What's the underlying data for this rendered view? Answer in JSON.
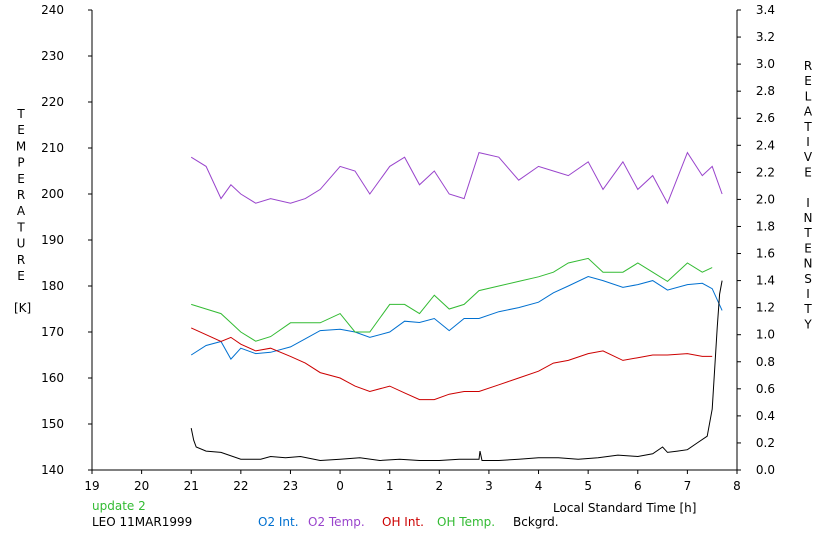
{
  "chart_data": {
    "type": "line",
    "xlabel": "Local Standard Time [h]",
    "ylabel_left": "TEMPERATURE [K]",
    "ylabel_left_letters": [
      "T",
      "E",
      "M",
      "P",
      "E",
      "R",
      "A",
      "T",
      "U",
      "R",
      "E"
    ],
    "ylabel_left_unit": "[K]",
    "ylabel_right": "RELATIVE INTENSITY",
    "ylabel_right_letters": [
      "R",
      "E",
      "L",
      "A",
      "T",
      "I",
      "V",
      "E",
      "",
      "I",
      "N",
      "T",
      "E",
      "N",
      "S",
      "I",
      "T",
      "Y"
    ],
    "x_ticks": [
      "19",
      "20",
      "21",
      "22",
      "23",
      "0",
      "1",
      "2",
      "3",
      "4",
      "5",
      "6",
      "7",
      "8"
    ],
    "y_left_ticks": [
      "240",
      "230",
      "220",
      "210",
      "200",
      "190",
      "180",
      "170",
      "160",
      "150",
      "140"
    ],
    "y_right_ticks": [
      "3.4",
      "3.2",
      "3.0",
      "2.8",
      "2.6",
      "2.4",
      "2.2",
      "2.0",
      "1.8",
      "1.6",
      "1.4",
      "1.2",
      "1.0",
      "0.8",
      "0.6",
      "0.4",
      "0.2",
      "0.0"
    ],
    "xlim": [
      19,
      32
    ],
    "ylim_left": [
      140,
      240
    ],
    "ylim_right": [
      0.0,
      3.4
    ],
    "grid": false,
    "legend_placement": "bottom",
    "series": [
      {
        "name": "O2 Int.",
        "color": "#0070d0",
        "axis": "right",
        "x": [
          21.0,
          21.3,
          21.6,
          21.8,
          22.0,
          22.3,
          22.6,
          23.0,
          23.3,
          23.6,
          24.0,
          24.3,
          24.6,
          25.0,
          25.3,
          25.6,
          25.9,
          26.2,
          26.5,
          26.8,
          27.2,
          27.6,
          28.0,
          28.3,
          28.6,
          29.0,
          29.3,
          29.7,
          30.0,
          30.3,
          30.6,
          31.0,
          31.3,
          31.5,
          31.7
        ],
        "y": [
          0.85,
          0.92,
          0.95,
          0.82,
          0.9,
          0.86,
          0.87,
          0.91,
          0.97,
          1.03,
          1.04,
          1.02,
          0.98,
          1.02,
          1.1,
          1.09,
          1.12,
          1.03,
          1.12,
          1.12,
          1.17,
          1.2,
          1.24,
          1.31,
          1.36,
          1.43,
          1.4,
          1.35,
          1.37,
          1.4,
          1.33,
          1.37,
          1.38,
          1.34,
          1.18
        ]
      },
      {
        "name": "O2 Temp.",
        "color": "#9944cc",
        "axis": "left",
        "x": [
          21.0,
          21.3,
          21.6,
          21.8,
          22.0,
          22.3,
          22.6,
          23.0,
          23.3,
          23.6,
          24.0,
          24.3,
          24.6,
          25.0,
          25.3,
          25.6,
          25.9,
          26.2,
          26.5,
          26.8,
          27.2,
          27.6,
          28.0,
          28.3,
          28.6,
          29.0,
          29.3,
          29.7,
          30.0,
          30.3,
          30.6,
          31.0,
          31.3,
          31.5,
          31.7
        ],
        "y": [
          208,
          206,
          199,
          202,
          200,
          198,
          199,
          198,
          199,
          201,
          206,
          205,
          200,
          206,
          208,
          202,
          205,
          200,
          199,
          209,
          208,
          203,
          206,
          205,
          204,
          207,
          201,
          207,
          201,
          204,
          198,
          209,
          204,
          206,
          200
        ]
      },
      {
        "name": "OH Int.",
        "color": "#cc0000",
        "axis": "right",
        "x": [
          21.0,
          21.3,
          21.6,
          21.8,
          22.0,
          22.3,
          22.6,
          23.0,
          23.3,
          23.6,
          24.0,
          24.3,
          24.6,
          25.0,
          25.3,
          25.6,
          25.9,
          26.2,
          26.5,
          26.8,
          27.2,
          27.6,
          28.0,
          28.3,
          28.6,
          29.0,
          29.3,
          29.7,
          30.0,
          30.3,
          30.6,
          31.0,
          31.3,
          31.5
        ],
        "y": [
          1.05,
          1.0,
          0.95,
          0.98,
          0.93,
          0.88,
          0.9,
          0.84,
          0.79,
          0.72,
          0.68,
          0.62,
          0.58,
          0.62,
          0.57,
          0.52,
          0.52,
          0.56,
          0.58,
          0.58,
          0.63,
          0.68,
          0.73,
          0.79,
          0.81,
          0.86,
          0.88,
          0.81,
          0.83,
          0.85,
          0.85,
          0.86,
          0.84,
          0.84
        ]
      },
      {
        "name": "OH Temp.",
        "color": "#33bb33",
        "axis": "left",
        "x": [
          21.0,
          21.3,
          21.6,
          21.8,
          22.0,
          22.3,
          22.6,
          23.0,
          23.3,
          23.6,
          24.0,
          24.3,
          24.6,
          25.0,
          25.3,
          25.6,
          25.9,
          26.2,
          26.5,
          26.8,
          27.2,
          27.6,
          28.0,
          28.3,
          28.6,
          29.0,
          29.3,
          29.7,
          30.0,
          30.3,
          30.6,
          31.0,
          31.3,
          31.5
        ],
        "y": [
          176,
          175,
          174,
          172,
          170,
          168,
          169,
          172,
          172,
          172,
          174,
          170,
          170,
          176,
          176,
          174,
          178,
          175,
          176,
          179,
          180,
          181,
          182,
          183,
          185,
          186,
          183,
          183,
          185,
          183,
          181,
          185,
          183,
          184
        ]
      },
      {
        "name": "Bckgrd.",
        "color": "#000000",
        "axis": "right",
        "x": [
          21.0,
          21.05,
          21.1,
          21.3,
          21.6,
          22.0,
          22.4,
          22.6,
          22.9,
          23.2,
          23.6,
          24.0,
          24.4,
          24.8,
          25.2,
          25.6,
          26.0,
          26.4,
          26.8,
          26.82,
          26.86,
          27.2,
          27.6,
          28.0,
          28.4,
          28.8,
          29.2,
          29.6,
          30.0,
          30.3,
          30.5,
          30.6,
          30.8,
          31.0,
          31.2,
          31.4,
          31.5,
          31.55,
          31.6,
          31.65,
          31.7
        ],
        "y": [
          0.31,
          0.22,
          0.17,
          0.14,
          0.13,
          0.08,
          0.08,
          0.1,
          0.09,
          0.1,
          0.07,
          0.08,
          0.09,
          0.07,
          0.08,
          0.07,
          0.07,
          0.08,
          0.08,
          0.14,
          0.07,
          0.07,
          0.08,
          0.09,
          0.09,
          0.08,
          0.09,
          0.11,
          0.1,
          0.12,
          0.17,
          0.13,
          0.14,
          0.15,
          0.2,
          0.25,
          0.45,
          0.75,
          1.05,
          1.3,
          1.4
        ]
      }
    ],
    "annotations": {
      "update": "update 2",
      "update_color": "#33bb33",
      "station_date": "LEO 11MAR1999"
    }
  }
}
